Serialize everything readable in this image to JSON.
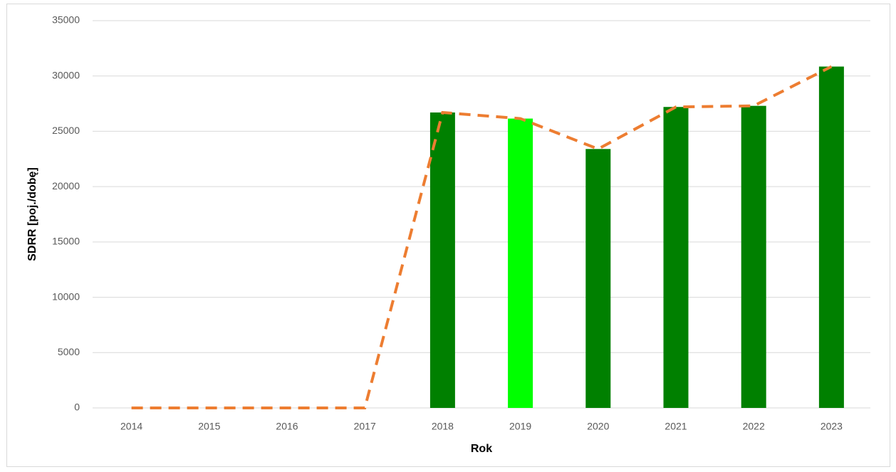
{
  "chart_data": {
    "type": "bar",
    "xlabel": "Rok",
    "ylabel": "SDRR [poj./dobę]",
    "categories": [
      "2014",
      "2015",
      "2016",
      "2017",
      "2018",
      "2019",
      "2020",
      "2021",
      "2022",
      "2023"
    ],
    "series": [
      {
        "type": "bar",
        "colors": [
          "#008000",
          "#008000",
          "#008000",
          "#008000",
          "#008000",
          "#00ff00",
          "#008000",
          "#008000",
          "#008000",
          "#008000"
        ],
        "values": [
          0,
          0,
          0,
          0,
          26700,
          26150,
          23400,
          27200,
          27300,
          30850
        ]
      },
      {
        "type": "line",
        "color": "#ed7d31",
        "dashed": true,
        "values": [
          0,
          0,
          0,
          0,
          26700,
          26150,
          23400,
          27200,
          27300,
          30850
        ]
      }
    ],
    "ylim": [
      0,
      35000
    ],
    "yticks": [
      0,
      5000,
      10000,
      15000,
      20000,
      25000,
      30000,
      35000
    ],
    "grid": true
  }
}
